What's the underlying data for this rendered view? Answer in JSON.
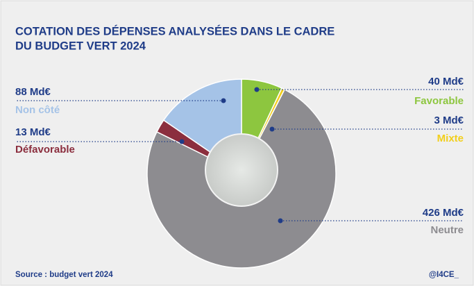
{
  "chart_data": {
    "type": "pie",
    "title": [
      "COTATION DES DÉPENSES ANALYSÉES DANS LE CADRE",
      "DU BUDGET VERT 2024"
    ],
    "categories": [
      "Favorable",
      "Mixte",
      "Neutre",
      "Défavorable",
      "Non côté"
    ],
    "values": [
      40,
      3,
      426,
      13,
      88
    ],
    "value_labels": [
      "40 Md€",
      "3 Md€",
      "426 Md€",
      "13 Md€",
      "88 Md€"
    ],
    "colors": [
      "#8dc63f",
      "#f2cf1c",
      "#8d8c90",
      "#8b2e3e",
      "#a5c3e7"
    ],
    "donut": true
  },
  "footer": {
    "source": "Source : budget vert 2024",
    "credit": "@I4CE_"
  }
}
